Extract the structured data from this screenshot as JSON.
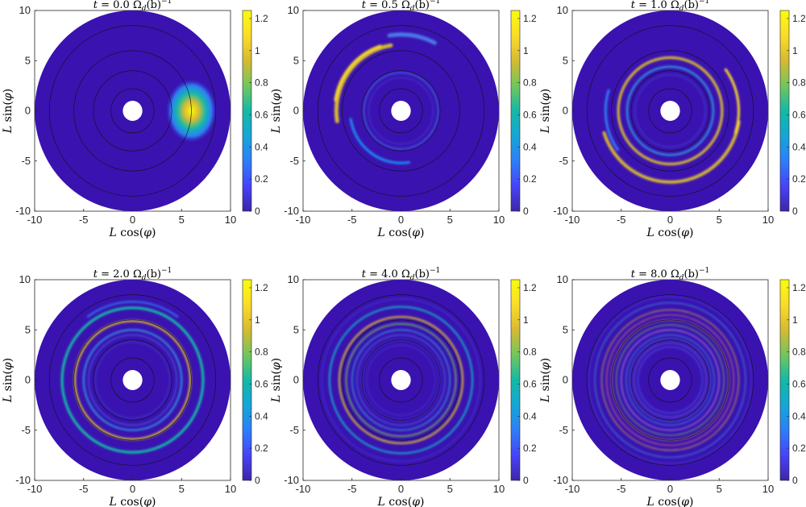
{
  "chart_data": [
    {
      "type": "heatmap",
      "title": "t = 0.0 Ω_d(b)^{-1}",
      "title_t": "t",
      "title_rest": " = 0.0 Ω",
      "title_sub": "d",
      "title_b": "(b)",
      "title_sup": "−1",
      "xlabel_L": "L",
      "xlabel_fn": " cos(",
      "xlabel_var": "φ",
      "xlabel_close": ")",
      "ylabel_L": "L",
      "ylabel_fn": " sin(",
      "ylabel_var": "φ",
      "ylabel_close": ")",
      "xlim": [
        -10,
        10
      ],
      "ylim": [
        -10,
        10
      ],
      "xticks": [
        "-10",
        "-5",
        "0",
        "5",
        "10"
      ],
      "yticks": [
        "10",
        "5",
        "0",
        "-5",
        "-10"
      ],
      "clim": [
        0,
        1.25
      ],
      "cbticks": [
        "1.2",
        "1",
        "0.8",
        "0.6",
        "0.4",
        "0.2",
        "0"
      ],
      "contour_radii": [
        2.2,
        4,
        6,
        8.5
      ]
    },
    {
      "type": "heatmap",
      "title": "t = 0.5 Ω_d(b)^{-1}",
      "title_t": "t",
      "title_rest": " = 0.5 Ω",
      "title_sub": "d",
      "title_b": "(b)",
      "title_sup": "−1",
      "xlabel_L": "L",
      "xlabel_fn": " cos(",
      "xlabel_var": "φ",
      "xlabel_close": ")",
      "ylabel_L": "L",
      "ylabel_fn": " sin(",
      "ylabel_var": "φ",
      "ylabel_close": ")",
      "xlim": [
        -10,
        10
      ],
      "ylim": [
        -10,
        10
      ],
      "xticks": [
        "-10",
        "-5",
        "0",
        "5",
        "10"
      ],
      "yticks": [
        "10",
        "5",
        "0",
        "-5",
        "-10"
      ],
      "clim": [
        0,
        1.25
      ],
      "cbticks": [
        "1.2",
        "1",
        "0.8",
        "0.6",
        "0.4",
        "0.2",
        "0"
      ],
      "contour_radii": [
        2.2,
        4,
        6,
        8.5
      ]
    },
    {
      "type": "heatmap",
      "title": "t = 1.0 Ω_d(b)^{-1}",
      "title_t": "t",
      "title_rest": " = 1.0 Ω",
      "title_sub": "d",
      "title_b": "(b)",
      "title_sup": "−1",
      "xlabel_L": "L",
      "xlabel_fn": " cos(",
      "xlabel_var": "φ",
      "xlabel_close": ")",
      "ylabel_L": "L",
      "ylabel_fn": " sin(",
      "ylabel_var": "φ",
      "ylabel_close": ")",
      "xlim": [
        -10,
        10
      ],
      "ylim": [
        -10,
        10
      ],
      "xticks": [
        "-10",
        "-5",
        "0",
        "5",
        "10"
      ],
      "yticks": [
        "10",
        "5",
        "0",
        "-5",
        "-10"
      ],
      "clim": [
        0,
        1.25
      ],
      "cbticks": [
        "1.2",
        "1",
        "0.8",
        "0.6",
        "0.4",
        "0.2",
        "0"
      ],
      "contour_radii": [
        2.2,
        4,
        6,
        8.5
      ]
    },
    {
      "type": "heatmap",
      "title": "t = 2.0 Ω_d(b)^{-1}",
      "title_t": "t",
      "title_rest": " = 2.0 Ω",
      "title_sub": "d",
      "title_b": "(b)",
      "title_sup": "−1",
      "xlabel_L": "L",
      "xlabel_fn": " cos(",
      "xlabel_var": "φ",
      "xlabel_close": ")",
      "ylabel_L": "L",
      "ylabel_fn": " sin(",
      "ylabel_var": "φ",
      "ylabel_close": ")",
      "xlim": [
        -10,
        10
      ],
      "ylim": [
        -10,
        10
      ],
      "xticks": [
        "-10",
        "-5",
        "0",
        "5",
        "10"
      ],
      "yticks": [
        "10",
        "5",
        "0",
        "-5",
        "-10"
      ],
      "clim": [
        0,
        1.25
      ],
      "cbticks": [
        "1.2",
        "1",
        "0.8",
        "0.6",
        "0.4",
        "0.2",
        "0"
      ],
      "contour_radii": [
        2.2,
        4,
        6,
        8.5
      ]
    },
    {
      "type": "heatmap",
      "title": "t = 4.0 Ω_d(b)^{-1}",
      "title_t": "t",
      "title_rest": " = 4.0 Ω",
      "title_sub": "d",
      "title_b": "(b)",
      "title_sup": "−1",
      "xlabel_L": "L",
      "xlabel_fn": " cos(",
      "xlabel_var": "φ",
      "xlabel_close": ")",
      "ylabel_L": "L",
      "ylabel_fn": " sin(",
      "ylabel_var": "φ",
      "ylabel_close": ")",
      "xlim": [
        -10,
        10
      ],
      "ylim": [
        -10,
        10
      ],
      "xticks": [
        "-10",
        "-5",
        "0",
        "5",
        "10"
      ],
      "yticks": [
        "10",
        "5",
        "0",
        "-5",
        "-10"
      ],
      "clim": [
        0,
        1.25
      ],
      "cbticks": [
        "1.2",
        "1",
        "0.8",
        "0.6",
        "0.4",
        "0.2",
        "0"
      ],
      "contour_radii": [
        2.2,
        4,
        6,
        8.5
      ]
    },
    {
      "type": "heatmap",
      "title": "t = 8.0 Ω_d(b)^{-1}",
      "title_t": "t",
      "title_rest": " = 8.0 Ω",
      "title_sub": "d",
      "title_b": "(b)",
      "title_sup": "−1",
      "xlabel_L": "L",
      "xlabel_fn": " cos(",
      "xlabel_var": "φ",
      "xlabel_close": ")",
      "ylabel_L": "L",
      "ylabel_fn": " sin(",
      "ylabel_var": "φ",
      "ylabel_close": ")",
      "xlim": [
        -10,
        10
      ],
      "ylim": [
        -10,
        10
      ],
      "xticks": [
        "-10",
        "-5",
        "0",
        "5",
        "10"
      ],
      "yticks": [
        "10",
        "5",
        "0",
        "-5",
        "-10"
      ],
      "clim": [
        0,
        1.25
      ],
      "cbticks": [
        "1.2",
        "1",
        "0.8",
        "0.6",
        "0.4",
        "0.2",
        "0"
      ],
      "contour_radii": [
        2.2,
        4,
        6,
        8.5
      ]
    }
  ],
  "colors": {
    "disk": "#3a12b0",
    "colormap": [
      "#3e26a8",
      "#4743f8",
      "#2d7ff8",
      "#15a6d6",
      "#14b9a6",
      "#72c65c",
      "#d6ba32",
      "#fbdc29",
      "#f9fb0e"
    ],
    "contour": "#111111"
  }
}
